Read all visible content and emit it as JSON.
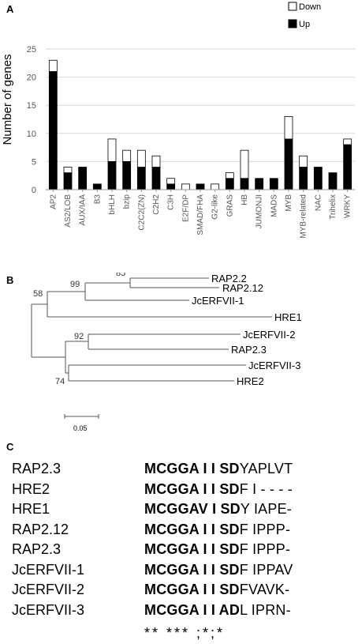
{
  "panels": {
    "a": "A",
    "b": "B",
    "c": "C"
  },
  "chart_data": {
    "type": "bar",
    "stacked": true,
    "ylabel": "Number of genes",
    "xlabel": "",
    "ylim": [
      0,
      25
    ],
    "yticks": [
      0,
      5,
      10,
      15,
      20,
      25
    ],
    "grid": true,
    "legend_position": "top-right",
    "categories": [
      "AP2",
      "AS2/LOB",
      "AUX/IAA",
      "B3",
      "bHLH",
      "bzip",
      "C2C2(ZN)",
      "C2H2",
      "C3H",
      "E2F/DP",
      "SMAD/FHA",
      "G2-like",
      "GRAS",
      "HB",
      "JUMONJI",
      "MADS",
      "MYB",
      "MYB-related",
      "NAC",
      "Trihelix",
      "WRKY"
    ],
    "series": [
      {
        "name": "Up",
        "color": "#000000",
        "values": [
          21,
          3,
          4,
          1,
          5,
          5,
          4,
          4,
          1,
          0,
          1,
          0,
          2,
          2,
          2,
          2,
          9,
          4,
          4,
          3,
          8
        ]
      },
      {
        "name": "Down",
        "color": "#ffffff",
        "values": [
          2,
          1,
          0,
          0,
          4,
          2,
          3,
          2,
          1,
          1,
          0,
          1,
          1,
          5,
          0,
          0,
          4,
          2,
          0,
          0,
          1
        ]
      }
    ]
  },
  "tree": {
    "leaves": [
      "RAP2.2",
      "RAP2.12",
      "JcERFVII-1",
      "HRE1",
      "JcERFVII-2",
      "RAP2.3",
      "JcERFVII-3",
      "HRE2"
    ],
    "bootstrap": [
      "85",
      "99",
      "58",
      "92",
      "74"
    ],
    "scale_label": "0.05"
  },
  "alignment": {
    "rows": [
      {
        "name": "RAP2.3",
        "bold": "MCGGA I I SD",
        "rest": "YAPLVT"
      },
      {
        "name": "HRE2",
        "bold": "MCGGA I I SD",
        "rest": "F I - - - -"
      },
      {
        "name": "HRE1",
        "bold": "MCGGAV I SD",
        "rest": "Y IAPE-"
      },
      {
        "name": "RAP2.12",
        "bold": "MCGGA I I SD",
        "rest": "F IPPP-"
      },
      {
        "name": "RAP2.3",
        "bold": "MCGGA I I SD",
        "rest": "F IPPP-"
      },
      {
        "name": "JcERFVII-1",
        "bold": "MCGGA I I SD",
        "rest": "F IPPAV"
      },
      {
        "name": "JcERFVII-2",
        "bold": "MCGGA I I SD",
        "rest": "FVAVK-"
      },
      {
        "name": "JcERFVII-3",
        "bold": "MCGGA I I AD",
        "rest": "L IPRN-"
      }
    ],
    "consensus": "** *** ;*;*"
  }
}
